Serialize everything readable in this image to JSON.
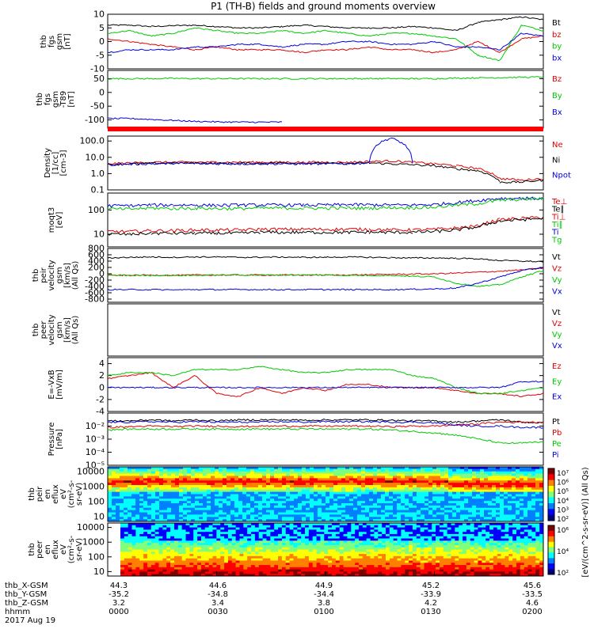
{
  "title": "P1 (TH-B) fields and ground moments overview",
  "date_label": "2017 Aug 19",
  "colors": {
    "black": "#000000",
    "red": "#e00000",
    "green": "#00c800",
    "blue": "#0000e0"
  },
  "chart_data": [
    {
      "id": "fgs",
      "type": "line",
      "ylabel_lines": [
        "thb",
        "fgs",
        "gsm",
        "[nT]"
      ],
      "ylim": [
        -10,
        10
      ],
      "yticks": [
        "10",
        "5",
        "0",
        "-5",
        "-10"
      ],
      "series": [
        {
          "name": "Bt",
          "color": "black",
          "values": [
            6,
            6,
            5.5,
            5.8,
            6,
            5.5,
            5,
            5,
            5.5,
            6,
            5.5,
            5,
            5,
            5,
            5.5,
            5,
            4,
            7,
            8,
            9,
            8
          ]
        },
        {
          "name": "bz",
          "color": "red",
          "values": [
            1,
            0,
            -1,
            -2,
            -3,
            -2,
            -3,
            -3,
            -3,
            -4,
            -3,
            -3,
            -2,
            -3,
            -3,
            -4,
            -3,
            0,
            -4,
            1,
            2
          ]
        },
        {
          "name": "by",
          "color": "green",
          "values": [
            3,
            4,
            2,
            3,
            5,
            4,
            3,
            3,
            4,
            3,
            4,
            3,
            2,
            3,
            3,
            2,
            1,
            -5,
            -7,
            6,
            4
          ]
        },
        {
          "name": "bx",
          "color": "blue",
          "values": [
            -4,
            -3,
            -3,
            -3,
            -2,
            -2,
            -1,
            -1,
            -2,
            -1,
            -1,
            0,
            0,
            -1,
            -1,
            0,
            -2,
            -2,
            -3,
            3,
            2
          ]
        }
      ]
    },
    {
      "id": "fgs_diff",
      "type": "line",
      "ylabel_lines": [
        "thb",
        "fgs",
        "gsm",
        "-T89",
        "[nT]"
      ],
      "ylim": [
        -130,
        80
      ],
      "yticks": [
        "50",
        "0",
        "-50",
        "-100"
      ],
      "series": [
        {
          "name": "Bz",
          "color": "red",
          "values": []
        },
        {
          "name": "By",
          "color": "green",
          "values": [
            50,
            50,
            50,
            51,
            50,
            50,
            50,
            50,
            50,
            50,
            50,
            50,
            50,
            50,
            50,
            50,
            52,
            53,
            54,
            55,
            56
          ]
        },
        {
          "name": "Bx",
          "color": "blue",
          "values": [
            -95,
            -95,
            -98,
            -102,
            -105,
            -107,
            -108,
            -108,
            -108,
            null,
            null,
            null,
            null,
            null,
            null,
            null,
            null,
            null,
            null,
            null,
            null
          ]
        }
      ]
    },
    {
      "id": "density",
      "type": "line",
      "scale": "log",
      "ylabel_lines": [
        "Density",
        "[1/cc]",
        "[cm-3]"
      ],
      "ylim": [
        0.1,
        200
      ],
      "yticks": [
        "100.0",
        "10.0",
        "1.0",
        "0.1"
      ],
      "series": [
        {
          "name": "Ne",
          "color": "red",
          "values": [
            4,
            4.5,
            5,
            5,
            5,
            5,
            5,
            5,
            5,
            5,
            5,
            5,
            5.5,
            6,
            5,
            4,
            3,
            2,
            0.5,
            0.4,
            0.5
          ]
        },
        {
          "name": "Ni",
          "color": "black",
          "values": [
            3.5,
            4,
            4.2,
            4.5,
            4.5,
            4.2,
            4.3,
            4.3,
            4.5,
            4.4,
            4.2,
            4.2,
            4.5,
            4,
            3.5,
            3,
            2,
            1.5,
            0.3,
            0.3,
            0.4
          ]
        },
        {
          "name": "Npot",
          "color": "blue",
          "values": [
            3.5,
            3.8,
            4,
            4.2,
            4.2,
            4,
            4,
            4,
            4,
            4,
            4,
            4,
            4.5,
            150,
            4,
            null,
            null,
            null,
            null,
            null,
            null
          ]
        }
      ]
    },
    {
      "id": "temp",
      "type": "line",
      "scale": "log",
      "ylabel_lines": [
        "moqt3",
        "[eV]"
      ],
      "ylim": [
        3,
        500
      ],
      "yticks": [
        "100",
        "10"
      ],
      "series": [
        {
          "name": "Te⊥",
          "color": "red",
          "values": [
            13,
            13,
            14,
            14,
            15,
            15,
            15,
            16,
            16,
            16,
            16,
            16,
            16,
            15,
            15,
            16,
            18,
            22,
            40,
            45,
            50
          ]
        },
        {
          "name": "Te∥",
          "color": "black",
          "values": [
            10,
            10,
            11,
            11,
            11,
            11,
            11,
            12,
            12,
            12,
            12,
            12,
            12,
            12,
            12,
            13,
            15,
            20,
            35,
            40,
            45
          ]
        },
        {
          "name": "Ti⊥",
          "color": "red",
          "values": []
        },
        {
          "name": "Ti∥",
          "color": "green",
          "values": []
        },
        {
          "name": "Ti",
          "color": "blue",
          "values": [
            150,
            150,
            160,
            160,
            160,
            155,
            160,
            160,
            160,
            160,
            160,
            165,
            165,
            160,
            160,
            170,
            200,
            250,
            300,
            300,
            300
          ]
        },
        {
          "name": "Tg",
          "color": "green",
          "values": [
            110,
            110,
            120,
            115,
            120,
            115,
            115,
            120,
            120,
            118,
            120,
            120,
            120,
            125,
            125,
            130,
            160,
            180,
            250,
            280,
            300
          ]
        }
      ]
    },
    {
      "id": "peir_vel",
      "type": "line",
      "ylabel_lines": [
        "thb",
        "peir",
        "velocity",
        "gsm",
        "[km/s]",
        "(All Qs)"
      ],
      "ylim": [
        -900,
        800
      ],
      "yticks": [
        "800",
        "600",
        "400",
        "200",
        "0",
        "-200",
        "-400",
        "-600",
        "-800"
      ],
      "series": [
        {
          "name": "Vt",
          "color": "black",
          "values": [
            500,
            520,
            530,
            520,
            530,
            530,
            520,
            520,
            530,
            520,
            520,
            530,
            520,
            510,
            500,
            500,
            490,
            470,
            420,
            400,
            380
          ]
        },
        {
          "name": "Vz",
          "color": "red",
          "values": [
            -50,
            -50,
            -40,
            -50,
            -40,
            -40,
            -40,
            -40,
            -40,
            -40,
            -40,
            -40,
            -30,
            -20,
            -10,
            0,
            20,
            50,
            80,
            120,
            180
          ]
        },
        {
          "name": "Vy",
          "color": "green",
          "values": [
            -50,
            -50,
            -50,
            -50,
            -50,
            -40,
            -40,
            -40,
            -40,
            -40,
            -40,
            -50,
            -50,
            -50,
            -80,
            -100,
            -300,
            -400,
            -350,
            -100,
            100
          ]
        },
        {
          "name": "Vx",
          "color": "blue",
          "values": [
            -500,
            -500,
            -500,
            -510,
            -500,
            -500,
            -500,
            -500,
            -500,
            -500,
            -500,
            -500,
            -500,
            -500,
            -490,
            -480,
            -450,
            -300,
            -100,
            100,
            200
          ]
        }
      ]
    },
    {
      "id": "peer_vel",
      "type": "line",
      "ylabel_lines": [
        "thb",
        "peer",
        "velocity",
        "gsm",
        "[km/s]",
        "(All Qs)"
      ],
      "ylim": [
        0,
        1
      ],
      "yticks": [],
      "series": [
        {
          "name": "Vt",
          "color": "black",
          "values": []
        },
        {
          "name": "Vz",
          "color": "red",
          "values": []
        },
        {
          "name": "Vy",
          "color": "green",
          "values": []
        },
        {
          "name": "Vx",
          "color": "blue",
          "values": []
        }
      ]
    },
    {
      "id": "efield",
      "type": "line",
      "ylabel_lines": [
        "E=-VxB",
        "[mV/m]"
      ],
      "ylim": [
        -4,
        5
      ],
      "yticks": [
        "4",
        "2",
        "0",
        "-2",
        "-4"
      ],
      "series": [
        {
          "name": "Ez",
          "color": "red",
          "values": [
            1.5,
            2,
            2.5,
            0,
            2,
            -1,
            -1.5,
            0,
            -1,
            0,
            -0.5,
            0.5,
            0.5,
            0,
            0,
            0,
            -0.5,
            -1,
            -1,
            -1.5,
            -1
          ]
        },
        {
          "name": "Ey",
          "color": "green",
          "values": [
            2,
            2.5,
            2.5,
            2,
            3,
            3,
            3,
            3.5,
            3,
            2.5,
            2.5,
            3,
            3,
            3,
            2,
            1.5,
            0,
            -1,
            -1,
            -0.5,
            0
          ]
        },
        {
          "name": "Ex",
          "color": "blue",
          "values": [
            0,
            0,
            0,
            0,
            0,
            0,
            0,
            0,
            0,
            0,
            0,
            0,
            0,
            0,
            0,
            0,
            0,
            0,
            0,
            1,
            1
          ]
        }
      ]
    },
    {
      "id": "pressure",
      "type": "line",
      "scale": "log",
      "ylabel_lines": [
        "Pressure",
        "[nPa]"
      ],
      "ylim": [
        1e-05,
        0.1
      ],
      "yticks": [
        "10⁻²",
        "10⁻³",
        "10⁻⁴",
        "10⁻⁵"
      ],
      "series": [
        {
          "name": "Pt",
          "color": "black",
          "values": [
            0.025,
            0.025,
            0.03,
            0.025,
            0.03,
            0.025,
            0.03,
            0.03,
            0.03,
            0.028,
            0.03,
            0.03,
            0.03,
            0.028,
            0.025,
            0.025,
            0.02,
            0.025,
            0.03,
            0.02,
            0.018
          ]
        },
        {
          "name": "Pb",
          "color": "red",
          "values": [
            0.008,
            0.009,
            0.01,
            0.009,
            0.01,
            0.01,
            0.009,
            0.01,
            0.01,
            0.01,
            0.01,
            0.01,
            0.01,
            0.009,
            0.01,
            0.01,
            0.012,
            0.015,
            0.02,
            0.02,
            0.02
          ]
        },
        {
          "name": "Pe",
          "color": "green",
          "values": [
            0.005,
            0.006,
            0.006,
            0.006,
            0.006,
            0.006,
            0.006,
            0.006,
            0.006,
            0.006,
            0.006,
            0.006,
            0.006,
            0.005,
            0.004,
            0.003,
            0.002,
            0.001,
            0.0005,
            0.0005,
            0.0006
          ]
        },
        {
          "name": "Pi",
          "color": "blue",
          "values": [
            0.02,
            0.02,
            0.022,
            0.02,
            0.022,
            0.02,
            0.02,
            0.02,
            0.022,
            0.02,
            0.022,
            0.022,
            0.022,
            0.02,
            0.02,
            0.018,
            0.012,
            0.01,
            0.01,
            0.008,
            0.008
          ]
        }
      ]
    },
    {
      "id": "peir_spec",
      "type": "heatmap",
      "ylabel_lines": [
        "thb",
        "peir",
        "en",
        "eflux",
        "eV",
        "(cm²-s-",
        "sr-eV)"
      ],
      "ylim": [
        5,
        20000
      ],
      "yticks": [
        "10000",
        "1000",
        "100",
        "10"
      ]
    },
    {
      "id": "peer_spec",
      "type": "heatmap",
      "ylabel_lines": [
        "thb",
        "peer",
        "en",
        "eflux",
        "eV",
        "(cm²-s-",
        "sr-eV)"
      ],
      "ylim": [
        5,
        20000
      ],
      "yticks": [
        "10000",
        "1000",
        "100",
        "10"
      ]
    }
  ],
  "colorbar_top": {
    "ticks": [
      "10⁷",
      "10⁶",
      "10⁵",
      "10⁴",
      "10³",
      "10²"
    ]
  },
  "colorbar_bottom": {
    "ticks": [
      "10⁶",
      "10⁴",
      "10²"
    ]
  },
  "colorbar_label": "[eV/(cm^2-s-sr-eV)] (All Qs)",
  "x_axis": {
    "rows": [
      {
        "label": "thb_X-GSM",
        "values": [
          "44.3",
          "44.6",
          "44.9",
          "45.2",
          "45.6"
        ]
      },
      {
        "label": "thb_Y-GSM",
        "values": [
          "-35.2",
          "-34.8",
          "-34.4",
          "-33.9",
          "-33.5"
        ]
      },
      {
        "label": "thb_Z-GSM",
        "values": [
          "3.2",
          "3.4",
          "3.8",
          "4.2",
          "4.6"
        ]
      },
      {
        "label": "hhmm",
        "values": [
          "0000",
          "0030",
          "0100",
          "0130",
          "0200"
        ]
      }
    ],
    "mid_values_x": [
      "44.6",
      "44.9",
      "45.2"
    ],
    "mid_values_y": [
      "-34.8",
      "-34.4",
      "-33.9"
    ],
    "mid_values_z": [
      "3.4",
      "3.8",
      "4.2"
    ]
  }
}
